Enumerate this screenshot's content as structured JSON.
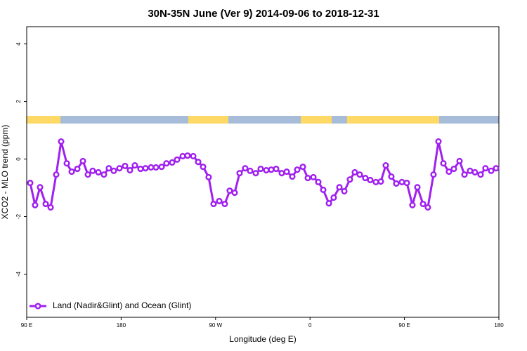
{
  "chart_data": {
    "type": "line",
    "title": "30N-35N June (Ver 9)   2014-09-06 to 2018-12-31",
    "x_label": "Longitude (deg E)",
    "y_label": "XCO2 - MLO trend (ppm)",
    "xlim": [
      90,
      540
    ],
    "xticks": [
      {
        "value": 90,
        "label": "90 E"
      },
      180,
      {
        "value": 270,
        "label": "90 W"
      },
      {
        "value": 360,
        "label": "0"
      },
      {
        "value": 450,
        "label": "90 E"
      },
      {
        "value": 540,
        "label": "180"
      }
    ],
    "ylim": [
      -5.5,
      4.6
    ],
    "yticks": [
      -4,
      -2,
      0,
      2,
      4
    ],
    "legend": "bottomleft",
    "series": [
      {
        "name": "Land (Nadir&Glint) and Ocean (Glint)",
        "color": "#a020f0",
        "x": [
          93.3,
          98.0,
          102.7,
          108.1,
          112.8,
          118.1,
          122.8,
          128.2,
          132.9,
          138.2,
          143.6,
          148.3,
          152.9,
          158.3,
          163.6,
          168.3,
          173.0,
          178.4,
          183.7,
          188.4,
          193.1,
          198.5,
          203.2,
          208.5,
          213.2,
          218.6,
          223.2,
          228.6,
          233.3,
          238.7,
          243.3,
          248.7,
          253.4,
          258.1,
          263.4,
          268.1,
          273.5,
          278.8,
          283.5,
          288.2,
          292.9,
          298.2,
          302.9,
          308.3,
          313.0,
          318.3,
          323.0,
          327.7,
          333.1,
          337.8,
          343.1,
          347.8,
          353.2,
          357.9,
          363.2,
          367.9,
          372.6,
          378.0,
          382.6,
          388.0,
          392.7,
          398.0,
          402.7,
          407.4,
          412.7,
          417.4,
          422.8,
          427.5,
          432.2,
          437.5,
          442.2,
          447.6,
          452.3,
          457.6,
          462.3,
          467.7,
          472.3,
          477.7,
          482.4,
          487.1,
          492.4,
          497.1,
          502.5,
          507.2,
          512.5,
          517.2,
          522.6,
          527.2,
          532.6,
          537.3
        ],
        "values": [
          -0.83,
          -1.6,
          -0.98,
          -1.56,
          -1.68,
          -0.54,
          0.61,
          -0.15,
          -0.44,
          -0.34,
          -0.07,
          -0.54,
          -0.41,
          -0.46,
          -0.54,
          -0.32,
          -0.41,
          -0.32,
          -0.24,
          -0.39,
          -0.22,
          -0.34,
          -0.32,
          -0.29,
          -0.29,
          -0.27,
          -0.15,
          -0.12,
          -0.02,
          0.1,
          0.12,
          0.1,
          -0.1,
          -0.27,
          -0.63,
          -1.56,
          -1.46,
          -1.56,
          -1.1,
          -1.17,
          -0.49,
          -0.32,
          -0.41,
          -0.49,
          -0.34,
          -0.39,
          -0.37,
          -0.34,
          -0.49,
          -0.44,
          -0.61,
          -0.37,
          -0.27,
          -0.66,
          -0.63,
          -0.8,
          -1.07,
          -1.54,
          -1.34,
          -0.98,
          -1.12,
          -0.71,
          -0.46,
          -0.54,
          -0.66,
          -0.73,
          -0.8,
          -0.78,
          -0.22,
          -0.61,
          -0.85,
          -0.8,
          -0.83,
          -1.6,
          -0.98,
          -1.56,
          -1.68,
          -0.54,
          0.61,
          -0.15,
          -0.44,
          -0.34,
          -0.07,
          -0.54,
          -0.41,
          -0.46,
          -0.54,
          -0.32,
          -0.41,
          -0.32
        ]
      }
    ]
  }
}
